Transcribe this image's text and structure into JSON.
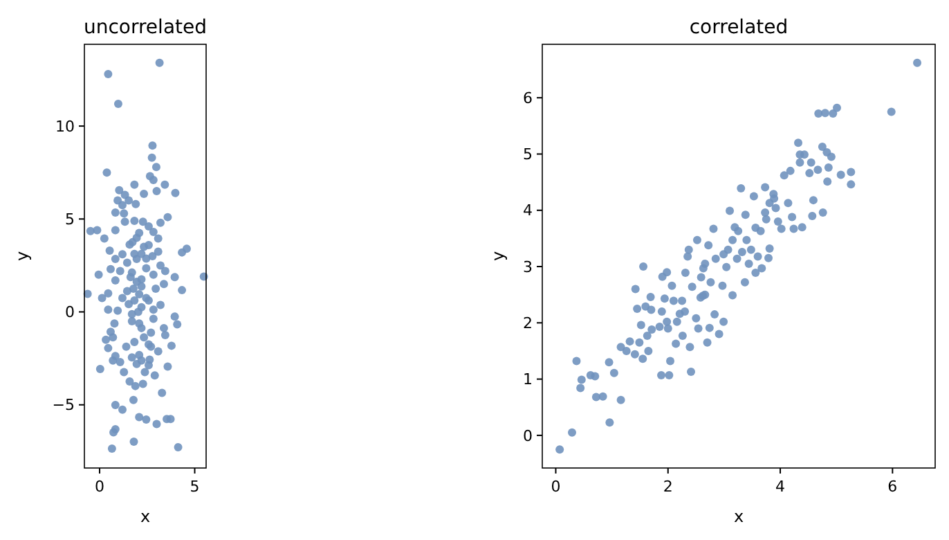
{
  "chart_data": [
    {
      "type": "scatter",
      "title": "uncorrelated",
      "xlabel": "x",
      "ylabel": "y",
      "xlim": [
        -0.8,
        5.6
      ],
      "ylim": [
        -8.4,
        14.4
      ],
      "xticks": [
        0,
        5
      ],
      "yticks": [
        -5,
        0,
        5,
        10
      ],
      "marker": "circle",
      "series": [
        {
          "color": "#7092be",
          "x": [
            3.15,
            0.45,
            0.98,
            2.78,
            2.75,
            2.98,
            0.38,
            2.65,
            2.83,
            3.43,
            1.83,
            3.98,
            3.0,
            2.33,
            1.03,
            1.33,
            0.95,
            1.53,
            1.9,
            1.2,
            0.83,
            3.58,
            1.28,
            3.2,
            2.28,
            1.83,
            1.33,
            -0.48,
            -0.13,
            0.83,
            2.58,
            2.83,
            2.08,
            0.25,
            3.08,
            1.73,
            2.58,
            2.33,
            4.58,
            4.33,
            0.53,
            1.2,
            2.78,
            0.83,
            1.95,
            1.45,
            3.2,
            2.45,
            0.58,
            1.08,
            3.45,
            2.83,
            5.48,
            -0.05,
            3.95,
            1.63,
            2.2,
            0.83,
            3.38,
            4.33,
            2.95,
            1.78,
            0.45,
            -0.63,
            2.08,
            0.13,
            1.2,
            2.58,
            1.53,
            3.2,
            0.45,
            0.95,
            2.03,
            3.95,
            2.83,
            1.7,
            0.78,
            4.08,
            2.2,
            3.38,
            0.58,
            2.7,
            3.45,
            0.7,
            0.33,
            1.83,
            2.58,
            3.78,
            0.45,
            1.4,
            3.08,
            0.83,
            2.08,
            1.7,
            0.7,
            2.63,
            1.08,
            3.58,
            1.95,
            0.03,
            1.28,
            2.38,
            2.9,
            1.58,
            2.28,
            1.88,
            3.28,
            1.78,
            0.83,
            1.2,
            2.08,
            2.45,
            3.53,
            3.73,
            3.0,
            0.83,
            0.73,
            1.8,
            4.13,
            0.65,
            1.58,
            1.95,
            2.2,
            2.45,
            1.7,
            1.95,
            2.2,
            1.45,
            2.45,
            1.83,
            2.2,
            2.83,
            1.7,
            2.08,
            2.33,
            2.7,
            2.2,
            2.58,
            1.83,
            3.08
          ],
          "values": [
            13.4,
            12.8,
            11.2,
            8.95,
            8.3,
            7.8,
            7.5,
            7.3,
            7.1,
            6.85,
            6.85,
            6.4,
            6.5,
            6.35,
            6.55,
            6.3,
            6.0,
            6.0,
            5.8,
            5.75,
            5.35,
            5.1,
            5.3,
            4.8,
            4.85,
            4.9,
            4.85,
            4.35,
            4.4,
            4.4,
            4.6,
            4.3,
            4.25,
            3.95,
            3.95,
            3.75,
            3.6,
            3.5,
            3.4,
            3.2,
            3.3,
            3.1,
            3.0,
            2.85,
            2.85,
            2.65,
            2.5,
            2.35,
            2.3,
            2.2,
            2.2,
            2.0,
            1.9,
            2.0,
            1.87,
            1.87,
            1.75,
            1.7,
            1.5,
            1.17,
            1.25,
            1.25,
            1.0,
            0.97,
            0.95,
            0.75,
            0.75,
            0.62,
            0.42,
            0.37,
            0.12,
            0.07,
            0.0,
            -0.25,
            -0.37,
            -0.5,
            -0.62,
            -0.67,
            -0.87,
            -0.87,
            -1.07,
            -1.12,
            -1.25,
            -1.37,
            -1.5,
            -1.62,
            -1.75,
            -1.82,
            -1.95,
            -1.87,
            -2.12,
            -2.37,
            -2.32,
            -2.45,
            -2.62,
            -2.57,
            -2.7,
            -2.94,
            -2.8,
            -3.07,
            -3.24,
            -3.24,
            -3.42,
            -3.74,
            -3.87,
            -3.99,
            -4.36,
            -4.74,
            -5.01,
            -5.26,
            -5.66,
            -5.79,
            -5.76,
            -5.76,
            -6.03,
            -6.31,
            -6.48,
            -6.98,
            -7.28,
            -7.36,
            3.62,
            3.99,
            3.12,
            2.87,
            2.12,
            1.62,
            1.37,
            1.12,
            0.75,
            0.62,
            0.25,
            0.12,
            -0.12,
            -0.62,
            -1.37,
            -1.87,
            -2.62,
            -2.87,
            3.12,
            3.24
          ]
        }
      ]
    },
    {
      "type": "scatter",
      "title": "correlated",
      "xlabel": "x",
      "ylabel": "y",
      "xlim": [
        -0.24,
        6.76
      ],
      "ylim": [
        -0.58,
        6.95
      ],
      "xticks": [
        0,
        2,
        4,
        6
      ],
      "yticks": [
        0,
        1,
        2,
        3,
        4,
        5,
        6
      ],
      "marker": "circle",
      "series": [
        {
          "color": "#7092be",
          "x": [
            0.07,
            0.29,
            0.37,
            0.46,
            0.44,
            0.62,
            0.7,
            0.72,
            0.84,
            0.96,
            0.95,
            1.04,
            1.16,
            1.16,
            1.32,
            1.26,
            1.41,
            1.42,
            1.45,
            1.52,
            1.56,
            1.49,
            1.55,
            1.6,
            1.63,
            1.69,
            1.71,
            1.65,
            1.7,
            1.85,
            1.88,
            1.89,
            1.9,
            1.94,
            1.98,
            1.98,
            2.0,
            2.02,
            2.04,
            2.07,
            2.1,
            2.14,
            2.16,
            2.21,
            2.26,
            2.3,
            2.31,
            2.35,
            2.37,
            2.39,
            2.41,
            2.43,
            2.5,
            2.54,
            2.52,
            2.58,
            2.59,
            2.63,
            2.66,
            2.7,
            2.72,
            2.74,
            2.76,
            2.81,
            2.83,
            2.85,
            2.91,
            2.97,
            2.99,
            3.04,
            3.07,
            3.1,
            3.15,
            3.19,
            3.23,
            3.25,
            3.3,
            3.32,
            3.37,
            3.38,
            3.44,
            3.48,
            3.53,
            3.56,
            3.6,
            3.65,
            3.67,
            3.73,
            3.75,
            3.79,
            3.81,
            3.88,
            3.92,
            3.96,
            4.02,
            4.07,
            4.14,
            4.18,
            4.21,
            4.24,
            4.32,
            4.35,
            4.35,
            4.39,
            4.43,
            4.52,
            4.55,
            4.57,
            4.59,
            4.68,
            4.67,
            4.75,
            4.76,
            4.8,
            4.83,
            4.84,
            4.86,
            4.91,
            4.94,
            5.01,
            5.08,
            5.26,
            5.26,
            5.98,
            6.44,
            2.62,
            2.99,
            3.15,
            3.4,
            3.56,
            3.81,
            3.89,
            3.73,
            2.66,
            2.25
          ],
          "values": [
            -0.25,
            0.05,
            1.32,
            0.99,
            0.84,
            1.07,
            1.05,
            0.68,
            0.69,
            0.23,
            1.3,
            1.11,
            0.63,
            1.57,
            1.67,
            1.5,
            1.44,
            2.6,
            2.25,
            1.96,
            3.0,
            1.65,
            1.36,
            2.29,
            1.77,
            2.46,
            1.88,
            1.5,
            2.23,
            1.93,
            1.07,
            2.2,
            2.82,
            2.43,
            2.9,
            2.02,
            1.9,
            1.07,
            1.32,
            2.66,
            2.39,
            1.63,
            2.02,
            2.16,
            1.77,
            2.2,
            2.89,
            3.18,
            3.3,
            1.57,
            1.13,
            2.64,
            2.08,
            1.9,
            3.47,
            2.45,
            2.81,
            2.97,
            2.5,
            1.65,
            3.38,
            1.91,
            2.72,
            3.67,
            2.15,
            3.14,
            1.8,
            2.66,
            2.02,
            2.99,
            3.3,
            3.99,
            2.49,
            3.7,
            3.14,
            3.63,
            4.39,
            3.26,
            2.72,
            3.92,
            3.05,
            3.3,
            4.25,
            3.69,
            3.18,
            3.63,
            2.97,
            4.41,
            3.84,
            3.15,
            3.32,
            4.29,
            4.04,
            3.8,
            3.67,
            4.62,
            4.13,
            4.7,
            3.88,
            3.67,
            5.2,
            4.99,
            4.85,
            3.7,
            4.99,
            4.66,
            4.85,
            3.9,
            4.18,
            5.72,
            4.72,
            5.13,
            3.96,
            5.73,
            5.03,
            4.51,
            4.76,
            4.95,
            5.72,
            5.82,
            4.63,
            4.68,
            4.46,
            5.75,
            6.62,
            2.48,
            3.22,
            3.47,
            3.47,
            2.89,
            4.13,
            4.21,
            3.96,
            3.05,
            2.39
          ]
        }
      ]
    }
  ]
}
